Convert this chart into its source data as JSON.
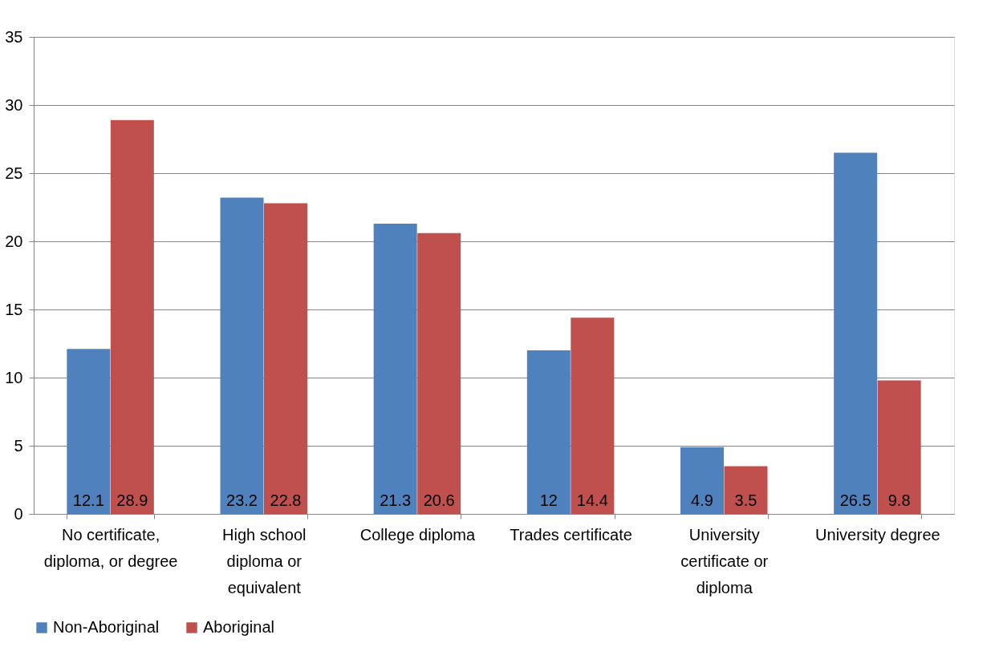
{
  "chart_data": {
    "type": "bar",
    "categories": [
      "No certificate, diploma, or degree",
      "High school diploma or equivalent",
      "College diploma",
      "Trades certificate",
      "University certificate or diploma",
      "University degree"
    ],
    "series": [
      {
        "name": "Non-Aboriginal",
        "color": "#4f81bd",
        "values": [
          12.1,
          23.2,
          21.3,
          12,
          4.9,
          26.5
        ]
      },
      {
        "name": "Aboriginal",
        "color": "#c0504d",
        "values": [
          28.9,
          22.8,
          20.6,
          14.4,
          3.5,
          9.8
        ]
      }
    ],
    "ylim": [
      0,
      35
    ],
    "yticks": [
      0,
      5,
      10,
      15,
      20,
      25,
      30,
      35
    ],
    "grid": "y",
    "legend": "bottom",
    "data_labels": true
  }
}
